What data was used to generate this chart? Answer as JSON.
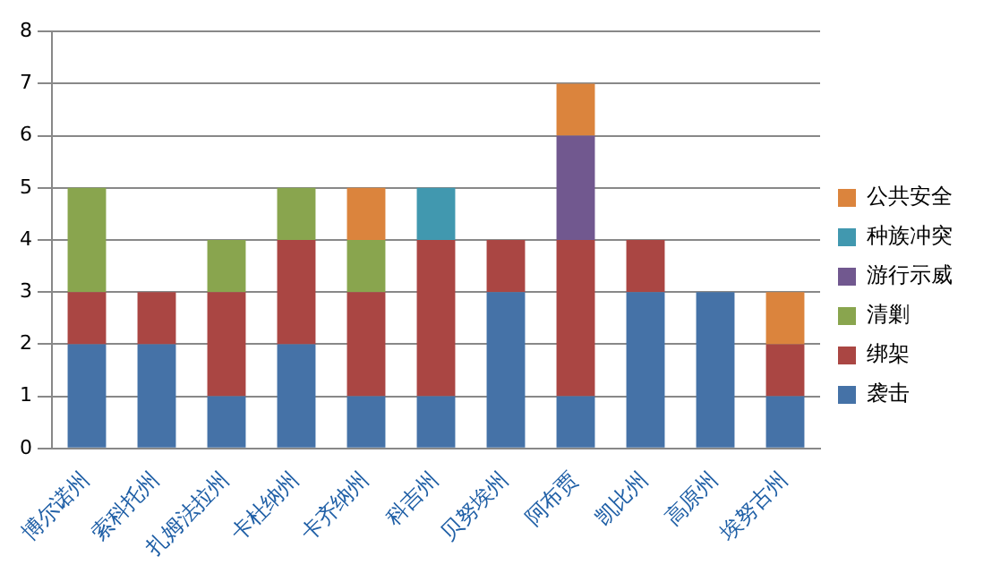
{
  "chart_data": {
    "type": "bar",
    "stacked": true,
    "categories": [
      "博尔诺州",
      "索科托州",
      "扎姆法拉州",
      "卡杜纳州",
      "卡齐纳州",
      "科吉州",
      "贝努埃州",
      "阿布贾",
      "凯比州",
      "高原州",
      "埃努古州"
    ],
    "series": [
      {
        "name": "袭击",
        "color": "#4572a7",
        "values": [
          2,
          2,
          1,
          2,
          1,
          1,
          3,
          1,
          3,
          3,
          1
        ]
      },
      {
        "name": "绑架",
        "color": "#aa4643",
        "values": [
          1,
          1,
          2,
          2,
          2,
          3,
          1,
          3,
          1,
          0,
          1
        ]
      },
      {
        "name": "清剿",
        "color": "#89a54e",
        "values": [
          2,
          0,
          1,
          1,
          1,
          0,
          0,
          0,
          0,
          0,
          0
        ]
      },
      {
        "name": "游行示威",
        "color": "#71588f",
        "values": [
          0,
          0,
          0,
          0,
          0,
          0,
          0,
          2,
          0,
          0,
          0
        ]
      },
      {
        "name": "种族冲突",
        "color": "#4198af",
        "values": [
          0,
          0,
          0,
          0,
          0,
          1,
          0,
          0,
          0,
          0,
          0
        ]
      },
      {
        "name": "公共安全",
        "color": "#db843d",
        "values": [
          0,
          0,
          0,
          0,
          1,
          0,
          0,
          1,
          0,
          0,
          1
        ]
      }
    ],
    "ylim": [
      0,
      8
    ],
    "yticks": [
      0,
      1,
      2,
      3,
      4,
      5,
      6,
      7,
      8
    ],
    "grid": "y",
    "legend": "right"
  }
}
